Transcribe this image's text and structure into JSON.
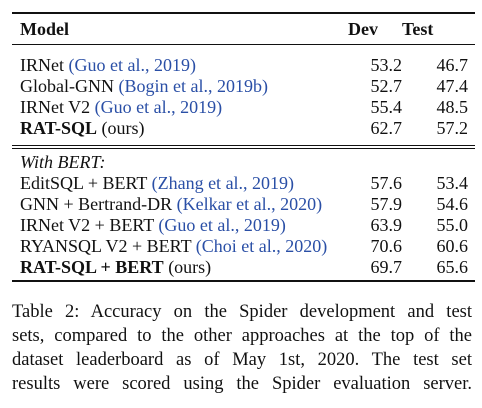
{
  "table": {
    "headers": [
      "Model",
      "Dev",
      "Test"
    ],
    "group1": [
      {
        "model": "IRNet ",
        "cite": "(Guo et al., 2019)",
        "suffix": "",
        "dev": "53.2",
        "test": "46.7",
        "bold_model": false,
        "bold_dev": false,
        "bold_test": false
      },
      {
        "model": "Global-GNN ",
        "cite": "(Bogin et al., 2019b)",
        "suffix": "",
        "dev": "52.7",
        "test": "47.4",
        "bold_model": false,
        "bold_dev": false,
        "bold_test": false
      },
      {
        "model": "IRNet V2 ",
        "cite": "(Guo et al., 2019)",
        "suffix": "",
        "dev": "55.4",
        "test": "48.5",
        "bold_model": false,
        "bold_dev": false,
        "bold_test": false
      },
      {
        "model": "RAT-SQL",
        "cite": "",
        "suffix": " (ours)",
        "dev": "62.7",
        "test": "57.2",
        "bold_model": true,
        "bold_dev": true,
        "bold_test": true
      }
    ],
    "group2_label": "With BERT:",
    "group2": [
      {
        "model": "EditSQL + BERT ",
        "cite": "(Zhang et al., 2019)",
        "suffix": "",
        "dev": "57.6",
        "test": "53.4",
        "bold_model": false,
        "bold_dev": false,
        "bold_test": false
      },
      {
        "model": "GNN + Bertrand-DR ",
        "cite": "(Kelkar et al., 2020)",
        "suffix": "",
        "dev": "57.9",
        "test": "54.6",
        "bold_model": false,
        "bold_dev": false,
        "bold_test": false
      },
      {
        "model": "IRNet V2 + BERT ",
        "cite": "(Guo et al., 2019)",
        "suffix": "",
        "dev": "63.9",
        "test": "55.0",
        "bold_model": false,
        "bold_dev": false,
        "bold_test": false
      },
      {
        "model": "RYANSQL V2 + BERT ",
        "cite": "(Choi et al., 2020)",
        "suffix": "",
        "dev": "70.6",
        "test": "60.6",
        "bold_model": false,
        "bold_dev": true,
        "bold_test": false
      },
      {
        "model": "RAT-SQL + BERT",
        "cite": "",
        "suffix": " (ours)",
        "dev": "69.7",
        "test": "65.6",
        "bold_model": true,
        "bold_dev": false,
        "bold_test": true
      }
    ]
  },
  "caption": {
    "lines": [
      "Table 2: Accuracy on the Spider development and test",
      "sets, compared to the other approaches at the top of the",
      "dataset leaderboard as of May 1st, 2020. The test set",
      "results were scored using the Spider evaluation server."
    ]
  }
}
